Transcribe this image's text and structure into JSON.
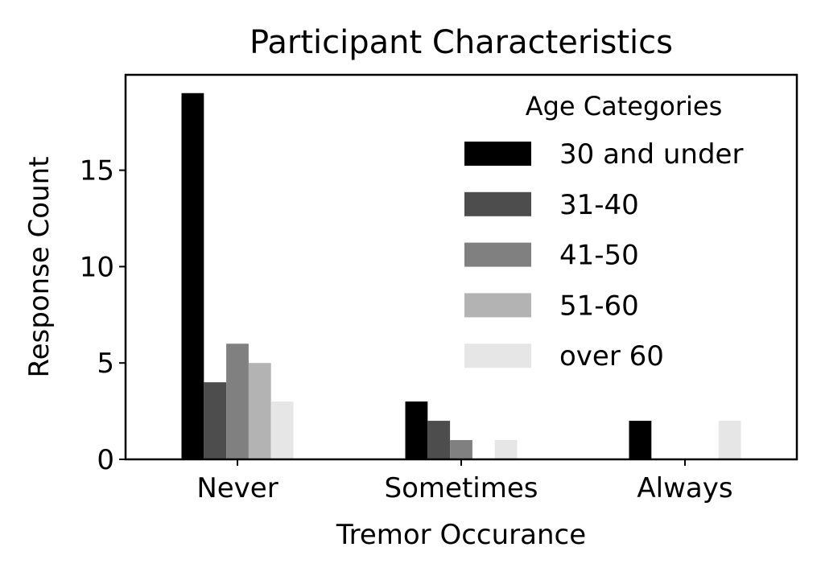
{
  "chart_data": {
    "type": "bar",
    "title": "Participant Characteristics",
    "xlabel": "Tremor Occurance",
    "ylabel": "Response Count",
    "categories": [
      "Never",
      "Sometimes",
      "Always"
    ],
    "ylim": [
      0,
      19.95
    ],
    "yticks": [
      0,
      5,
      10,
      15
    ],
    "grid": false,
    "legend": {
      "title": "Age Categories",
      "position": "top-right"
    },
    "series": [
      {
        "name": "30 and under",
        "color": "#000000",
        "values": [
          19,
          3,
          2
        ]
      },
      {
        "name": "31-40",
        "color": "#4d4d4d",
        "values": [
          4,
          2,
          0
        ]
      },
      {
        "name": "41-50",
        "color": "#808080",
        "values": [
          6,
          1,
          0
        ]
      },
      {
        "name": "51-60",
        "color": "#b3b3b3",
        "values": [
          5,
          0,
          0
        ]
      },
      {
        "name": "over 60",
        "color": "#e6e6e6",
        "values": [
          3,
          1,
          2
        ]
      }
    ]
  }
}
